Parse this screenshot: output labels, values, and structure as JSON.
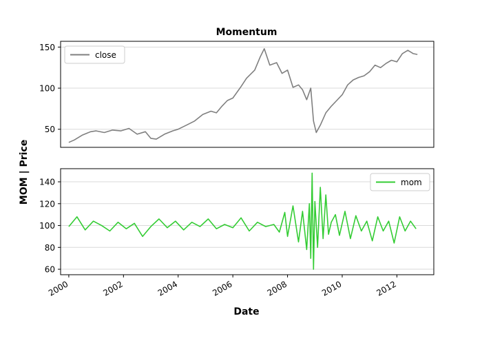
{
  "chart_data": [
    {
      "type": "line",
      "title": "Momentum",
      "ylim": [
        28,
        157
      ],
      "yticks": [
        50,
        100,
        150
      ],
      "xlim": [
        1999.7,
        2013.35
      ],
      "grid": {
        "y": true,
        "x": false
      },
      "legend": {
        "placement": "top-left",
        "entries": [
          "close"
        ]
      },
      "series": [
        {
          "name": "close",
          "color": "#7f7f7f",
          "x": [
            2000.0,
            2000.2,
            2000.5,
            2000.8,
            2001.0,
            2001.3,
            2001.6,
            2001.9,
            2002.2,
            2002.5,
            2002.8,
            2003.0,
            2003.2,
            2003.5,
            2003.8,
            2004.0,
            2004.3,
            2004.6,
            2004.9,
            2005.2,
            2005.4,
            2005.6,
            2005.8,
            2006.0,
            2006.3,
            2006.5,
            2006.8,
            2007.0,
            2007.15,
            2007.35,
            2007.6,
            2007.8,
            2008.0,
            2008.2,
            2008.4,
            2008.55,
            2008.7,
            2008.85,
            2008.95,
            2009.05,
            2009.2,
            2009.4,
            2009.6,
            2009.8,
            2010.0,
            2010.2,
            2010.4,
            2010.6,
            2010.8,
            2011.0,
            2011.2,
            2011.4,
            2011.6,
            2011.8,
            2012.0,
            2012.2,
            2012.4,
            2012.6,
            2012.75
          ],
          "values": [
            34,
            37,
            43,
            47,
            48,
            46,
            49,
            48,
            51,
            44,
            47,
            39,
            38,
            44,
            48,
            50,
            55,
            60,
            68,
            72,
            70,
            78,
            85,
            88,
            102,
            112,
            122,
            138,
            148,
            128,
            131,
            118,
            122,
            101,
            104,
            98,
            86,
            100,
            60,
            46,
            55,
            70,
            78,
            85,
            92,
            104,
            110,
            113,
            115,
            120,
            128,
            125,
            130,
            134,
            132,
            142,
            146,
            142,
            141
          ]
        }
      ]
    },
    {
      "type": "line",
      "title": "",
      "ylim": [
        55,
        152
      ],
      "yticks": [
        60,
        80,
        100,
        120,
        140
      ],
      "xlim": [
        1999.7,
        2013.35
      ],
      "xticks": [
        "2000",
        "2002",
        "2004",
        "2006",
        "2008",
        "2010",
        "2012"
      ],
      "xlabel": "Date",
      "grid": {
        "y": true,
        "x": false
      },
      "legend": {
        "placement": "top-right",
        "entries": [
          "mom"
        ]
      },
      "series": [
        {
          "name": "mom",
          "color": "#33cc33",
          "x": [
            2000.0,
            2000.3,
            2000.6,
            2000.9,
            2001.2,
            2001.5,
            2001.8,
            2002.1,
            2002.4,
            2002.7,
            2003.0,
            2003.3,
            2003.6,
            2003.9,
            2004.2,
            2004.5,
            2004.8,
            2005.1,
            2005.4,
            2005.7,
            2006.0,
            2006.3,
            2006.6,
            2006.9,
            2007.2,
            2007.5,
            2007.7,
            2007.9,
            2008.0,
            2008.2,
            2008.4,
            2008.55,
            2008.7,
            2008.8,
            2008.85,
            2008.9,
            2008.95,
            2009.0,
            2009.1,
            2009.2,
            2009.3,
            2009.4,
            2009.5,
            2009.6,
            2009.75,
            2009.9,
            2010.1,
            2010.3,
            2010.5,
            2010.7,
            2010.9,
            2011.1,
            2011.3,
            2011.5,
            2011.7,
            2011.9,
            2012.1,
            2012.3,
            2012.5,
            2012.7
          ],
          "values": [
            99,
            108,
            96,
            104,
            100,
            95,
            103,
            97,
            102,
            90,
            99,
            106,
            98,
            104,
            96,
            103,
            99,
            106,
            97,
            101,
            98,
            107,
            95,
            103,
            99,
            101,
            94,
            112,
            90,
            118,
            85,
            113,
            78,
            120,
            70,
            148,
            60,
            122,
            80,
            135,
            88,
            128,
            92,
            103,
            110,
            91,
            113,
            88,
            109,
            95,
            104,
            86,
            108,
            95,
            104,
            84,
            108,
            95,
            104,
            97
          ]
        }
      ]
    }
  ],
  "ylabel": "MOM | Price"
}
